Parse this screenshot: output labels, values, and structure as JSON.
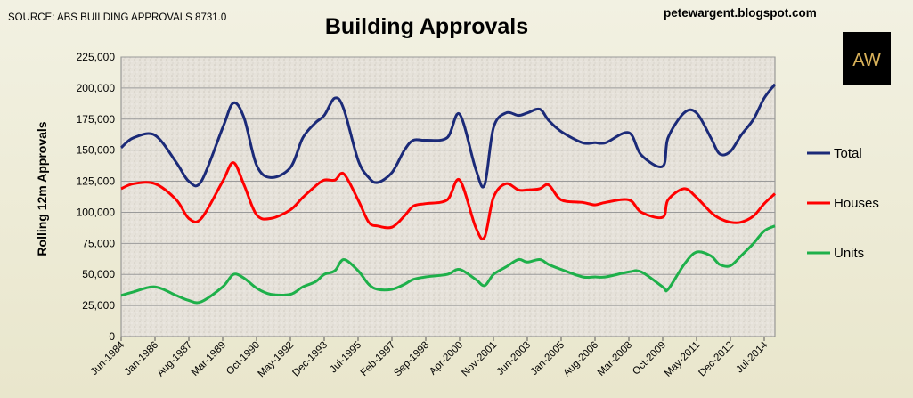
{
  "source": "SOURCE: ABS BUILDING APPROVALS 8731.0",
  "blog": "petewargent.blogspot.com",
  "logo_text": "AW",
  "colors": {
    "total": "#1b2a78",
    "houses": "#ff0000",
    "units": "#1eb04a",
    "plot_bg": "#e8e4dc",
    "grid": "#9a9a9a"
  },
  "chart_data": {
    "type": "line",
    "title": "Building Approvals",
    "xlabel": "",
    "ylabel": "Rolling 12m  Approvals",
    "ylim": [
      0,
      225000
    ],
    "yticks": [
      "0",
      "25,000",
      "50,000",
      "75,000",
      "100,000",
      "125,000",
      "150,000",
      "175,000",
      "200,000",
      "225,000"
    ],
    "xticks": [
      "Jun-1984",
      "Jan-1986",
      "Aug-1987",
      "Mar-1989",
      "Oct-1990",
      "May-1992",
      "Dec-1993",
      "Jul-1995",
      "Feb-1997",
      "Sep-1998",
      "Apr-2000",
      "Nov-2001",
      "Jun-2003",
      "Jan-2005",
      "Aug-2006",
      "Mar-2008",
      "Oct-2009",
      "May-2011",
      "Dec-2012",
      "Jul-2014"
    ],
    "x": [
      "Jun-1984",
      "Jan-1985",
      "Jan-1986",
      "Jan-1987",
      "Aug-1987",
      "Mar-1988",
      "Mar-1989",
      "Sep-1989",
      "Mar-1990",
      "Oct-1990",
      "Jun-1991",
      "May-1992",
      "Dec-1992",
      "Jul-1993",
      "Dec-1993",
      "Jun-1994",
      "Nov-1994",
      "Jul-1995",
      "Jan-1996",
      "Jun-1996",
      "Feb-1997",
      "Sep-1997",
      "Feb-1998",
      "Sep-1998",
      "Sep-1999",
      "Apr-2000",
      "Jan-2001",
      "Jun-2001",
      "Nov-2001",
      "Jun-2002",
      "Jan-2003",
      "Jun-2003",
      "Jan-2004",
      "Jun-2004",
      "Jan-2005",
      "Jan-2006",
      "Aug-2006",
      "Feb-2007",
      "Mar-2008",
      "Oct-2008",
      "Oct-2009",
      "Jan-2010",
      "Oct-2010",
      "May-2011",
      "Jan-2012",
      "Jun-2012",
      "Dec-2012",
      "Jun-2013",
      "Jan-2014",
      "Jul-2014",
      "Jan-2015"
    ],
    "series": [
      {
        "name": "Total",
        "color": "#1b2a78",
        "values": [
          152000,
          160000,
          162000,
          140000,
          125000,
          125000,
          168000,
          188000,
          176000,
          138000,
          128000,
          136000,
          160000,
          172000,
          178000,
          192000,
          183000,
          142000,
          128000,
          124000,
          132000,
          150000,
          158000,
          158000,
          160000,
          179000,
          135000,
          122000,
          168000,
          180000,
          178000,
          180000,
          183000,
          174000,
          165000,
          156000,
          156000,
          156000,
          164000,
          146000,
          137000,
          160000,
          180000,
          180000,
          160000,
          147000,
          149000,
          162000,
          175000,
          192000,
          203000
        ]
      },
      {
        "name": "Houses",
        "color": "#ff0000",
        "values": [
          119000,
          123000,
          123000,
          110000,
          95000,
          95000,
          125000,
          140000,
          122000,
          98000,
          95000,
          102000,
          112000,
          121000,
          126000,
          126000,
          131000,
          110000,
          92000,
          89000,
          88000,
          97000,
          105000,
          107000,
          110000,
          126000,
          88000,
          80000,
          112000,
          123000,
          118000,
          118000,
          119000,
          122000,
          110000,
          108000,
          106000,
          108000,
          110000,
          100000,
          96000,
          110000,
          119000,
          112000,
          100000,
          95000,
          92000,
          92000,
          97000,
          107000,
          115000
        ]
      },
      {
        "name": "Units",
        "color": "#1eb04a",
        "values": [
          33000,
          36000,
          40000,
          33000,
          29000,
          28000,
          40000,
          50000,
          47000,
          39000,
          34000,
          34000,
          40000,
          44000,
          50000,
          53000,
          62000,
          53000,
          42000,
          38000,
          38000,
          42000,
          46000,
          48000,
          50000,
          54000,
          46000,
          41000,
          50000,
          56000,
          62000,
          60000,
          62000,
          58000,
          54000,
          48000,
          48000,
          48000,
          52000,
          52000,
          40000,
          38000,
          58000,
          68000,
          65000,
          58000,
          57000,
          65000,
          75000,
          85000,
          89000
        ]
      }
    ],
    "legend": "right"
  }
}
